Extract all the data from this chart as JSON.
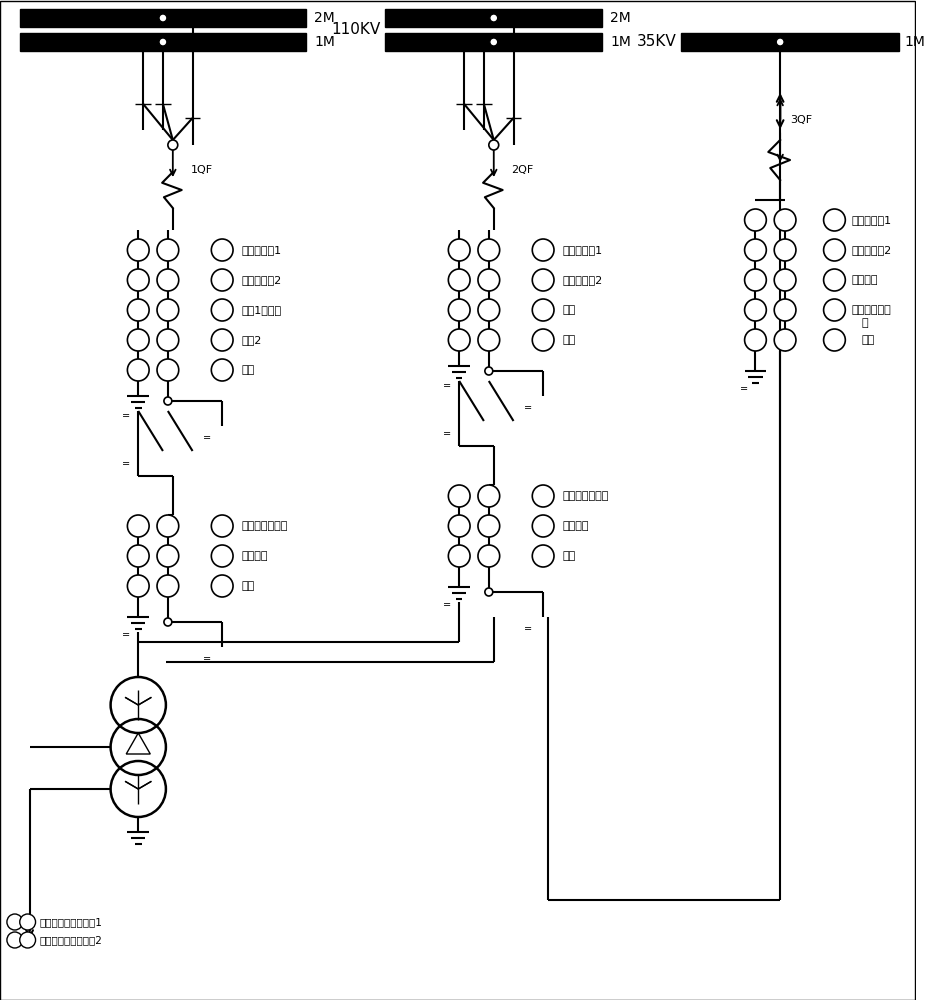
{
  "bg_color": "#ffffff",
  "feeder1_labels": [
    "纵差、后备1",
    "纵差、后备2",
    "母剗1、失灵",
    "母剗2",
    "计量"
  ],
  "feeder2_labels": [
    "纵差、后备1",
    "纵差、后备2",
    "母差",
    "计量"
  ],
  "feeder3_labels": [
    "纵差、后备1",
    "纵差、后备2",
    "故障录波",
    "测量、无功监测\n测",
    "计量"
  ],
  "lower1_labels": [
    "测量、无功监测",
    "故障录波",
    "备用"
  ],
  "lower2_labels": [
    "测量、无功监测",
    "故障录波",
    "备用"
  ],
  "bottom_labels": [
    "过负荷１、零序过测1",
    "过负荷２、零序过测2"
  ],
  "label3_line4a": "测量、无功监",
  "label3_line4b": "测",
  "label3_line5": "计量"
}
